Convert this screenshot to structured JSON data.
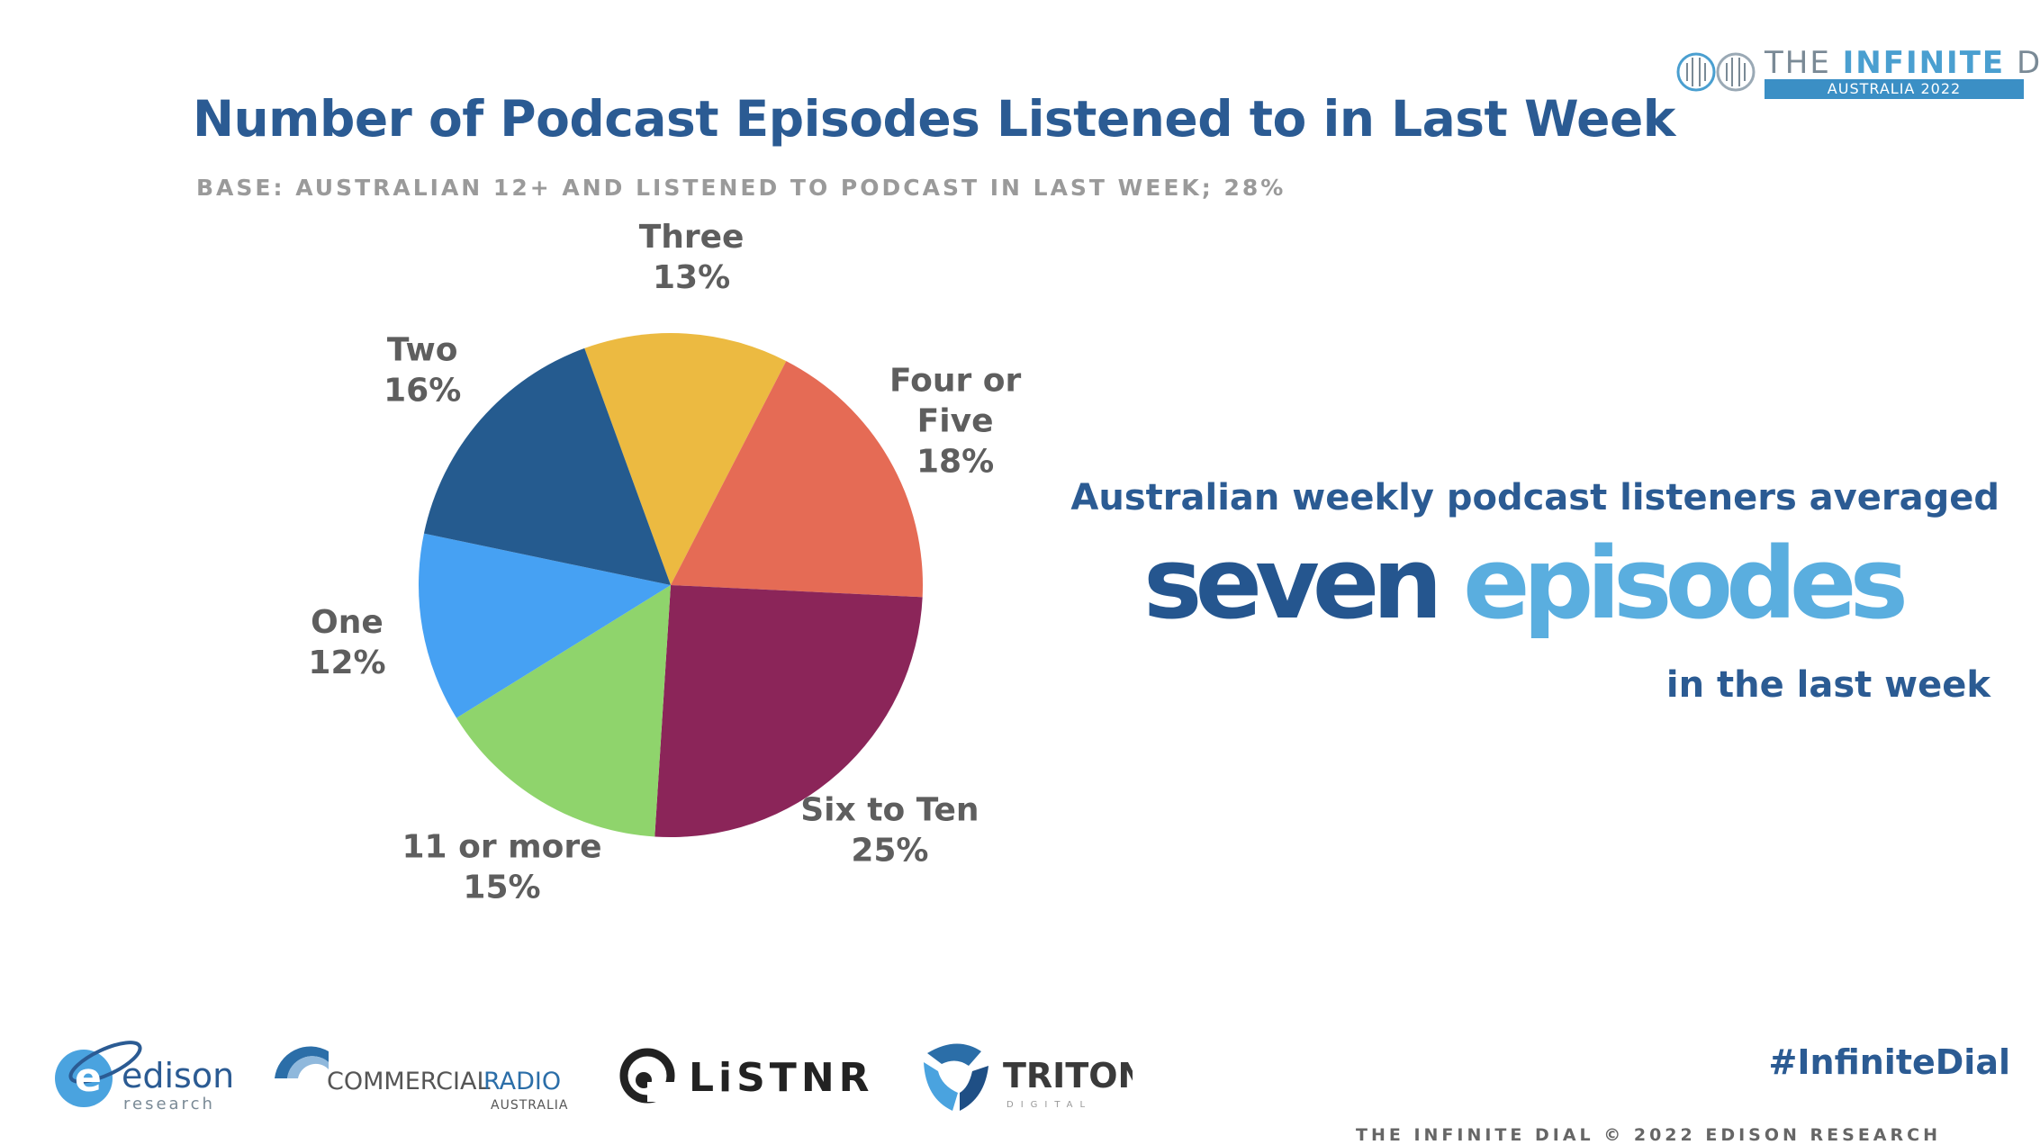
{
  "header": {
    "title": "Number of Podcast Episodes Listened to in Last Week",
    "subtitle": "BASE: AUSTRALIAN 12+ AND LISTENED TO PODCAST IN LAST WEEK; 28%"
  },
  "brand": {
    "title_prefix": "THE ",
    "title_bold": "INFINITE",
    "title_suffix": " DIAL",
    "edition": "AUSTRALIA 2022"
  },
  "chart_data": {
    "type": "pie",
    "title": "Number of Podcast Episodes Listened to in Last Week",
    "start_angle_deg": -20,
    "direction": "clockwise",
    "slices": [
      {
        "label": [
          "Three"
        ],
        "percent_text": "13%",
        "value": 13,
        "color": "#ecba41"
      },
      {
        "label": [
          "Four or",
          "Five"
        ],
        "percent_text": "18%",
        "value": 18,
        "color": "#e56b55"
      },
      {
        "label": [
          "Six to Ten"
        ],
        "percent_text": "25%",
        "value": 25,
        "color": "#8b2559"
      },
      {
        "label": [
          "11 or more"
        ],
        "percent_text": "15%",
        "value": 15,
        "color": "#8fd46c"
      },
      {
        "label": [
          "One"
        ],
        "percent_text": "12%",
        "value": 12,
        "color": "#46a1f3"
      },
      {
        "label": [
          "Two"
        ],
        "percent_text": "16%",
        "value": 16,
        "color": "#255b8f"
      }
    ]
  },
  "callout": {
    "line1": "Australian weekly podcast listeners averaged",
    "big_part1": "seven",
    "big_part2": "episodes",
    "line3": "in the last week"
  },
  "logos": {
    "edison_name": "edison",
    "edison_sub": "research",
    "commercial_radio_1": "COMMERCIAL",
    "commercial_radio_2": "RADIO",
    "commercial_radio_sub": "AUSTRALIA",
    "listnr": "LiSTNR",
    "triton": "TRITON",
    "triton_sub": "DIGITAL"
  },
  "hashtag": "#InfiniteDial",
  "footer": "THE INFINITE DIAL  © 2022 EDISON RESEARCH",
  "colors": {
    "title": "#2b5b93",
    "subtitle": "#9a9a9a",
    "accent_light": "#5aaedf",
    "accent_dark": "#25568f"
  }
}
